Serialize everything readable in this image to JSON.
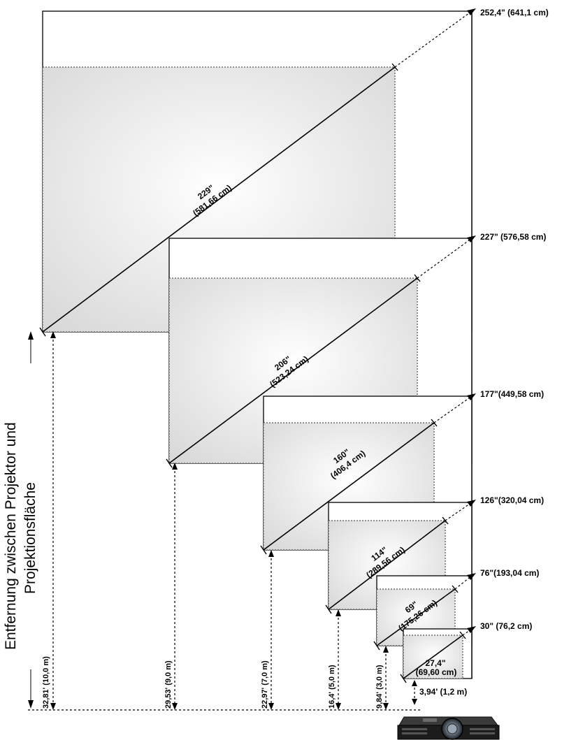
{
  "axis_label": {
    "line1": "Entfernung zwischen Projektor und",
    "line2": "Projektionsfläche"
  },
  "screens": [
    {
      "max_label": "252,4\" (641,1 cm)",
      "diag_inch": "229\"",
      "diag_cm": "(581,66 cm)",
      "distance": "32,81' (10,0 m)"
    },
    {
      "max_label": "227\" (576,58 cm)",
      "diag_inch": "206\"",
      "diag_cm": "(523,24 cm)",
      "distance": "29,53' (9,0 m)"
    },
    {
      "max_label": "177\"(449,58 cm)",
      "diag_inch": "160\"",
      "diag_cm": "(406,4 cm)",
      "distance": "22,97' (7,0 m)"
    },
    {
      "max_label": "126\"(320,04 cm)",
      "diag_inch": "114\"",
      "diag_cm": "(289,56 cm)",
      "distance": "16,4' (5,0 m)"
    },
    {
      "max_label": "76\"(193,04 cm)",
      "diag_inch": "69\"",
      "diag_cm": "(175,26 cm)",
      "distance": "9,84' (3,0 m)"
    },
    {
      "max_label": "30\" (76,2 cm)",
      "diag_inch": "27,4\"",
      "diag_cm": "(69,60 cm)",
      "distance": ""
    }
  ],
  "min_distance": "3,94' (1,2 m)",
  "icons": {
    "projector": "projector-icon"
  }
}
